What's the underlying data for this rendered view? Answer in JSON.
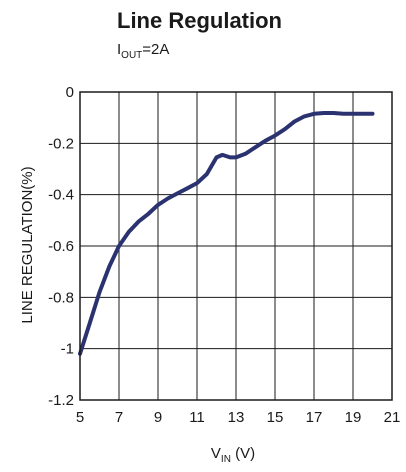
{
  "chart_data": {
    "type": "line",
    "title": "Line Regulation",
    "subtitle": {
      "prefix": "I",
      "sub": "OUT",
      "suffix": "=2A"
    },
    "xlabel": {
      "prefix": "V",
      "sub": "IN",
      "suffix": " (V)"
    },
    "ylabel": "LINE REGULATION(%)",
    "xlim": [
      5,
      21
    ],
    "ylim": [
      -1.2,
      0
    ],
    "xticks": [
      5,
      7,
      9,
      11,
      13,
      15,
      17,
      19,
      21
    ],
    "xtick_labels": [
      "5",
      "7",
      "9",
      "11",
      "13",
      "15",
      "17",
      "19",
      "21"
    ],
    "yticks": [
      0,
      -0.2,
      -0.4,
      -0.6,
      -0.8,
      -1,
      -1.2
    ],
    "ytick_labels": [
      "0",
      "-0.2",
      "-0.4",
      "-0.6",
      "-0.8",
      "-1",
      "-1.2"
    ],
    "grid": true,
    "line_color": "#2b3270",
    "x": [
      5.0,
      5.5,
      6.0,
      6.5,
      7.0,
      7.5,
      8.0,
      8.5,
      9.0,
      9.5,
      10.0,
      10.5,
      11.0,
      11.5,
      12.0,
      12.3,
      12.7,
      13.0,
      13.5,
      14.0,
      14.5,
      15.0,
      15.5,
      16.0,
      16.5,
      17.0,
      17.5,
      18.0,
      18.5,
      19.0,
      19.5,
      20.0
    ],
    "y": [
      -1.02,
      -0.9,
      -0.78,
      -0.68,
      -0.6,
      -0.545,
      -0.505,
      -0.475,
      -0.44,
      -0.415,
      -0.395,
      -0.375,
      -0.355,
      -0.32,
      -0.255,
      -0.245,
      -0.255,
      -0.255,
      -0.24,
      -0.215,
      -0.19,
      -0.17,
      -0.145,
      -0.115,
      -0.095,
      -0.085,
      -0.082,
      -0.082,
      -0.085,
      -0.085,
      -0.085,
      -0.085
    ]
  }
}
